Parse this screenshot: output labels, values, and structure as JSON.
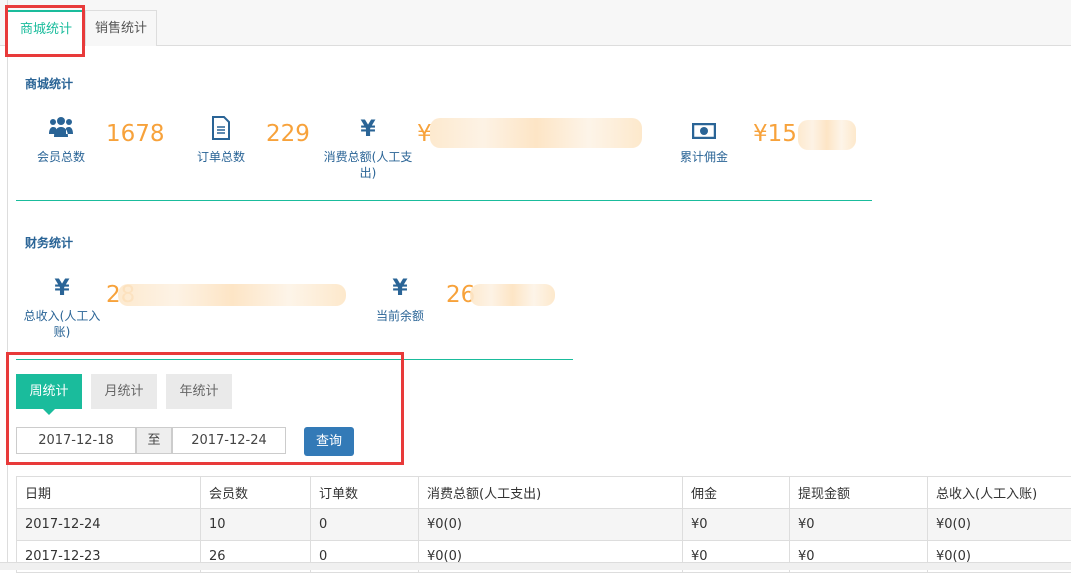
{
  "tabs": [
    {
      "label": "商城统计",
      "active": true
    },
    {
      "label": "销售统计",
      "active": false
    }
  ],
  "mall": {
    "title": "商城统计",
    "items": [
      {
        "icon": "users-icon",
        "label": "会员总数",
        "value": "1678"
      },
      {
        "icon": "document-icon",
        "label": "订单总数",
        "value": "229"
      },
      {
        "icon": "yen-icon",
        "label": "消费总额(人工支出)",
        "value": "¥"
      },
      {
        "icon": "money-icon",
        "label": "累计佣金",
        "value": "¥15"
      }
    ]
  },
  "finance": {
    "title": "财务统计",
    "items": [
      {
        "icon": "yen-icon",
        "label": "总收入(人工入账)",
        "value": "28"
      },
      {
        "icon": "yen-icon",
        "label": "当前余额",
        "value": "26"
      }
    ]
  },
  "period": {
    "buttons": [
      "周统计",
      "月统计",
      "年统计"
    ],
    "active": "周统计"
  },
  "query": {
    "start": "2017-12-18",
    "sep": "至",
    "end": "2017-12-24",
    "button": "查询"
  },
  "table": {
    "headers": [
      "日期",
      "会员数",
      "订单数",
      "消费总额(人工支出)",
      "佣金",
      "提现金额",
      "总收入(人工入账)"
    ],
    "rows": [
      [
        "2017-12-24",
        "10",
        "0",
        "¥0(0)",
        "¥0",
        "¥0",
        "¥0(0)"
      ],
      [
        "2017-12-23",
        "26",
        "0",
        "¥0(0)",
        "¥0",
        "¥0",
        "¥0(0)"
      ]
    ]
  },
  "colors": {
    "accent": "#1abc9c",
    "primary": "#337ab7",
    "number": "#f7a23b",
    "label": "#2a6496"
  }
}
